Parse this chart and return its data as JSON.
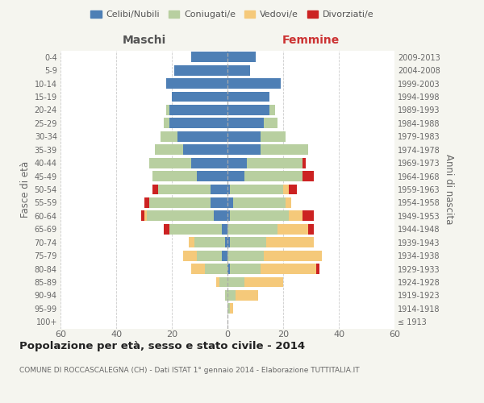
{
  "age_groups": [
    "100+",
    "95-99",
    "90-94",
    "85-89",
    "80-84",
    "75-79",
    "70-74",
    "65-69",
    "60-64",
    "55-59",
    "50-54",
    "45-49",
    "40-44",
    "35-39",
    "30-34",
    "25-29",
    "20-24",
    "15-19",
    "10-14",
    "5-9",
    "0-4"
  ],
  "birth_years": [
    "≤ 1913",
    "1914-1918",
    "1919-1923",
    "1924-1928",
    "1929-1933",
    "1934-1938",
    "1939-1943",
    "1944-1948",
    "1949-1953",
    "1954-1958",
    "1959-1963",
    "1964-1968",
    "1969-1973",
    "1974-1978",
    "1979-1983",
    "1984-1988",
    "1989-1993",
    "1994-1998",
    "1999-2003",
    "2004-2008",
    "2009-2013"
  ],
  "male": {
    "celibi": [
      0,
      0,
      0,
      0,
      0,
      2,
      1,
      2,
      5,
      6,
      6,
      11,
      13,
      16,
      18,
      21,
      21,
      20,
      22,
      19,
      13
    ],
    "coniugati": [
      0,
      0,
      1,
      3,
      8,
      9,
      11,
      19,
      24,
      22,
      19,
      16,
      15,
      10,
      6,
      2,
      1,
      0,
      0,
      0,
      0
    ],
    "vedovi": [
      0,
      0,
      0,
      1,
      5,
      5,
      2,
      0,
      1,
      0,
      0,
      0,
      0,
      0,
      0,
      0,
      0,
      0,
      0,
      0,
      0
    ],
    "divorziati": [
      0,
      0,
      0,
      0,
      0,
      0,
      0,
      2,
      1,
      2,
      2,
      0,
      0,
      0,
      0,
      0,
      0,
      0,
      0,
      0,
      0
    ]
  },
  "female": {
    "nubili": [
      0,
      0,
      0,
      0,
      1,
      0,
      1,
      0,
      1,
      2,
      1,
      6,
      7,
      12,
      12,
      13,
      15,
      15,
      19,
      8,
      10
    ],
    "coniugate": [
      0,
      1,
      3,
      6,
      11,
      13,
      13,
      18,
      21,
      19,
      19,
      21,
      20,
      17,
      9,
      5,
      2,
      0,
      0,
      0,
      0
    ],
    "vedove": [
      0,
      1,
      8,
      14,
      20,
      21,
      17,
      11,
      5,
      2,
      2,
      0,
      0,
      0,
      0,
      0,
      0,
      0,
      0,
      0,
      0
    ],
    "divorziate": [
      0,
      0,
      0,
      0,
      1,
      0,
      0,
      2,
      4,
      0,
      3,
      4,
      1,
      0,
      0,
      0,
      0,
      0,
      0,
      0,
      0
    ]
  },
  "colors": {
    "celibi": "#4e7fb5",
    "coniugati": "#b8cfa0",
    "vedovi": "#f5c97a",
    "divorziati": "#cc2222"
  },
  "xlim": 60,
  "title": "Popolazione per età, sesso e stato civile - 2014",
  "subtitle": "COMUNE DI ROCCASCALEGNA (CH) - Dati ISTAT 1° gennaio 2014 - Elaborazione TUTTITALIA.IT",
  "ylabel_left": "Fasce di età",
  "ylabel_right": "Anni di nascita",
  "xlabel_left": "Maschi",
  "xlabel_right": "Femmine",
  "bg_color": "#f5f5ef",
  "plot_bg": "#ffffff"
}
